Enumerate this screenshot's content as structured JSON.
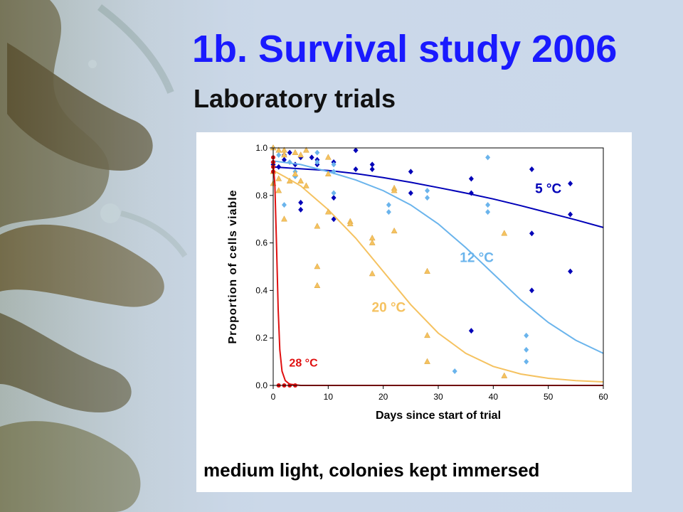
{
  "slide": {
    "title": "1b. Survival study 2006",
    "subtitle": "Laboratory trials",
    "caption": "medium light, colonies kept immersed"
  },
  "chart_data": {
    "type": "scatter",
    "xlabel": "Days since start of trial",
    "ylabel": "Proportion of cells viable",
    "xlim": [
      0,
      60
    ],
    "ylim": [
      0,
      1.0
    ],
    "xticks": [
      "0",
      "10",
      "20",
      "30",
      "40",
      "50",
      "60"
    ],
    "yticks": [
      "0.0",
      "0.2",
      "0.4",
      "0.6",
      "0.8",
      "1.0"
    ],
    "grid": false,
    "legend": "inline labels",
    "series": [
      {
        "name": "5 °C",
        "color": "#0000b8",
        "marker": "diamond",
        "points": [
          [
            0,
            0.94
          ],
          [
            0,
            0.93
          ],
          [
            1,
            0.92
          ],
          [
            2,
            0.95
          ],
          [
            2,
            0.97
          ],
          [
            3,
            0.98
          ],
          [
            4,
            0.93
          ],
          [
            5,
            0.96
          ],
          [
            5,
            0.77
          ],
          [
            5,
            0.74
          ],
          [
            7,
            0.96
          ],
          [
            8,
            0.95
          ],
          [
            8,
            0.93
          ],
          [
            11,
            0.79
          ],
          [
            11,
            0.7
          ],
          [
            11,
            0.94
          ],
          [
            15,
            0.99
          ],
          [
            15,
            0.91
          ],
          [
            18,
            0.93
          ],
          [
            18,
            0.91
          ],
          [
            25,
            0.9
          ],
          [
            25,
            0.81
          ],
          [
            36,
            0.87
          ],
          [
            36,
            0.81
          ],
          [
            36,
            0.23
          ],
          [
            47,
            0.91
          ],
          [
            47,
            0.64
          ],
          [
            47,
            0.4
          ],
          [
            54,
            0.85
          ],
          [
            54,
            0.72
          ],
          [
            54,
            0.48
          ]
        ],
        "curve": [
          [
            0,
            0.92
          ],
          [
            5,
            0.912
          ],
          [
            10,
            0.905
          ],
          [
            15,
            0.892
          ],
          [
            20,
            0.875
          ],
          [
            25,
            0.855
          ],
          [
            30,
            0.833
          ],
          [
            35,
            0.81
          ],
          [
            40,
            0.785
          ],
          [
            45,
            0.757
          ],
          [
            50,
            0.727
          ],
          [
            55,
            0.697
          ],
          [
            60,
            0.665
          ]
        ]
      },
      {
        "name": "12 °C",
        "color": "#6ab4ec",
        "marker": "diamond",
        "points": [
          [
            0,
            1.0
          ],
          [
            1,
            0.97
          ],
          [
            2,
            0.76
          ],
          [
            3,
            0.94
          ],
          [
            4,
            0.88
          ],
          [
            4,
            0.9
          ],
          [
            8,
            0.98
          ],
          [
            8,
            0.94
          ],
          [
            11,
            0.93
          ],
          [
            11,
            0.9
          ],
          [
            11,
            0.81
          ],
          [
            21,
            0.76
          ],
          [
            21,
            0.73
          ],
          [
            28,
            0.82
          ],
          [
            28,
            0.79
          ],
          [
            33,
            0.06
          ],
          [
            39,
            0.96
          ],
          [
            39,
            0.76
          ],
          [
            39,
            0.73
          ],
          [
            46,
            0.21
          ],
          [
            46,
            0.15
          ],
          [
            46,
            0.1
          ]
        ],
        "curve": [
          [
            0,
            0.945
          ],
          [
            5,
            0.93
          ],
          [
            10,
            0.9
          ],
          [
            15,
            0.865
          ],
          [
            20,
            0.82
          ],
          [
            25,
            0.76
          ],
          [
            30,
            0.68
          ],
          [
            35,
            0.58
          ],
          [
            40,
            0.47
          ],
          [
            45,
            0.36
          ],
          [
            50,
            0.265
          ],
          [
            55,
            0.19
          ],
          [
            60,
            0.135
          ]
        ]
      },
      {
        "name": "20 °C",
        "color": "#f5c260",
        "marker": "triangle",
        "points": [
          [
            0,
            1.0
          ],
          [
            0,
            0.9
          ],
          [
            0,
            0.85
          ],
          [
            1,
            0.99
          ],
          [
            1,
            0.87
          ],
          [
            1,
            0.82
          ],
          [
            2,
            0.99
          ],
          [
            2,
            0.97
          ],
          [
            2,
            0.7
          ],
          [
            3,
            0.86
          ],
          [
            4,
            0.98
          ],
          [
            4,
            0.89
          ],
          [
            5,
            0.86
          ],
          [
            5,
            0.97
          ],
          [
            6,
            0.84
          ],
          [
            6,
            0.99
          ],
          [
            8,
            0.67
          ],
          [
            8,
            0.5
          ],
          [
            8,
            0.42
          ],
          [
            10,
            0.96
          ],
          [
            10,
            0.89
          ],
          [
            10,
            0.73
          ],
          [
            14,
            0.69
          ],
          [
            14,
            0.68
          ],
          [
            18,
            0.62
          ],
          [
            18,
            0.6
          ],
          [
            18,
            0.47
          ],
          [
            22,
            0.83
          ],
          [
            22,
            0.82
          ],
          [
            22,
            0.65
          ],
          [
            28,
            0.48
          ],
          [
            28,
            0.21
          ],
          [
            28,
            0.1
          ],
          [
            42,
            0.64
          ],
          [
            42,
            0.04
          ]
        ],
        "curve": [
          [
            0,
            0.905
          ],
          [
            2,
            0.88
          ],
          [
            5,
            0.84
          ],
          [
            8,
            0.78
          ],
          [
            10,
            0.74
          ],
          [
            15,
            0.62
          ],
          [
            20,
            0.48
          ],
          [
            25,
            0.34
          ],
          [
            30,
            0.22
          ],
          [
            35,
            0.135
          ],
          [
            40,
            0.08
          ],
          [
            45,
            0.048
          ],
          [
            50,
            0.03
          ],
          [
            55,
            0.02
          ],
          [
            60,
            0.015
          ]
        ]
      },
      {
        "name": "28 °C",
        "color": "#e01010",
        "marker": "circle",
        "points": [
          [
            0,
            0.96
          ],
          [
            0,
            0.94
          ],
          [
            0,
            0.92
          ],
          [
            0,
            0.9
          ],
          [
            1,
            0.0
          ],
          [
            2,
            0.0
          ],
          [
            3,
            0.0
          ],
          [
            4,
            0.0
          ]
        ],
        "curve": [
          [
            0,
            0.93
          ],
          [
            0.3,
            0.85
          ],
          [
            0.6,
            0.6
          ],
          [
            0.9,
            0.32
          ],
          [
            1.2,
            0.15
          ],
          [
            1.6,
            0.06
          ],
          [
            2.2,
            0.02
          ],
          [
            3,
            0.005
          ],
          [
            5,
            0.0
          ],
          [
            60,
            0.0
          ]
        ]
      }
    ]
  }
}
